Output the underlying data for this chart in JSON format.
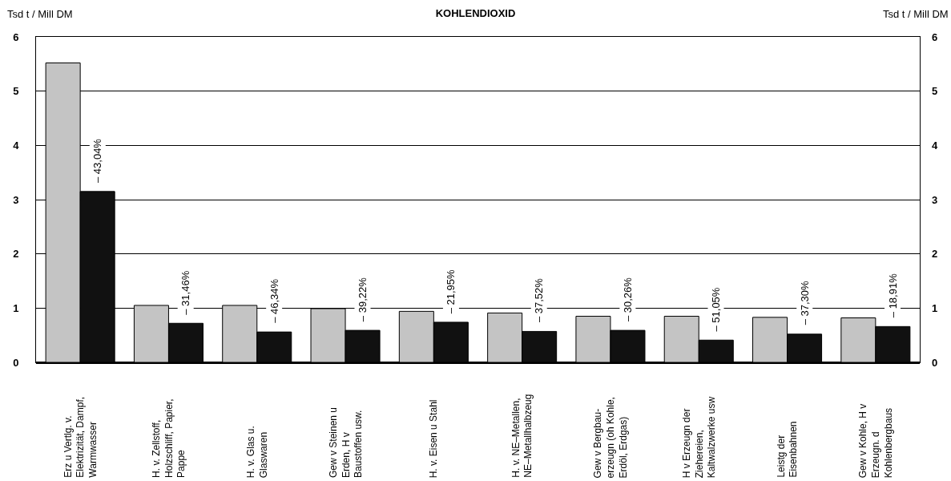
{
  "chart_data": {
    "type": "bar",
    "title": "KOHLENDIOXID",
    "ylabel": "Tsd t / Mill DM",
    "y2label": "Tsd t / Mill DM",
    "categories": [
      "Erz u Vertlg. v.\nElektrizität, Dampf,\nWarmwasser",
      "H. v. Zellstoff,\nHolzschliff, Papier,\nPappe",
      "H. v. Glas u.\nGlaswaren",
      "Gew v Steinen u\nErden, H v\nBaustoffen usw.",
      "H. v. Eisen u Stahl",
      "H. v. NE–Metallen,\nNE–Metallhalbzeug",
      "Gew v Bergbau-\nerzeugn (oh Kohle,\nErdöl, Erdgas)",
      "H v Erzeugn der\nZiehereien,\nKaltwalzwerke usw",
      "Leistg der\nEisenbahnen",
      "Gew v Kohle, H v\nErzeugn. d\nKohlenbergbaus"
    ],
    "series": [
      {
        "color": "#c4c4c4",
        "values": [
          5.52,
          1.05,
          1.05,
          0.99,
          0.94,
          0.91,
          0.85,
          0.85,
          0.83,
          0.82
        ]
      },
      {
        "color": "#111111",
        "values": [
          3.15,
          0.72,
          0.56,
          0.59,
          0.74,
          0.57,
          0.59,
          0.41,
          0.52,
          0.66
        ]
      }
    ],
    "annotations": [
      {
        "text": "– 43,04%",
        "x": "Erz u Vertlg. v.\nElektrizität, Dampf,\nWarmwasser",
        "y": 3.15
      },
      {
        "text": "– 31,46%",
        "x": "H. v. Zellstoff,\nHolzschliff, Papier,\nPappe",
        "y": 0.72
      },
      {
        "text": "– 46,34%",
        "x": "H. v. Glas u.\nGlaswaren",
        "y": 0.56
      },
      {
        "text": "– 39,22%",
        "x": "Gew v Steinen u\nErden, H v\nBaustoffen usw.",
        "y": 0.59
      },
      {
        "text": "– 21,95%",
        "x": "H. v. Eisen u Stahl",
        "y": 0.74
      },
      {
        "text": "– 37,52%",
        "x": "H. v. NE–Metallen,\nNE–Metallhalbzeug",
        "y": 0.57
      },
      {
        "text": "– 30,26%",
        "x": "Gew v Bergbau-\nerzeugn (oh Kohle,\nErdöl, Erdgas)",
        "y": 0.59
      },
      {
        "text": "– 51,05%",
        "x": "H v Erzeugn der\nZiehereien,\nKaltwalzwerke usw",
        "y": 0.41
      },
      {
        "text": "– 37,30%",
        "x": "Leistg der\nEisenbahnen",
        "y": 0.52
      },
      {
        "text": "– 18,91%",
        "x": "Gew v Kohle, H v\nErzeugn. d\nKohlenbergbaus",
        "y": 0.66
      }
    ],
    "ylim": [
      0,
      6
    ],
    "yticks": [
      0,
      1,
      2,
      3,
      4,
      5,
      6
    ],
    "y2lim": [
      0,
      6
    ],
    "y2ticks": [
      0,
      1,
      2,
      3,
      4,
      5,
      6
    ],
    "grid": "y"
  }
}
